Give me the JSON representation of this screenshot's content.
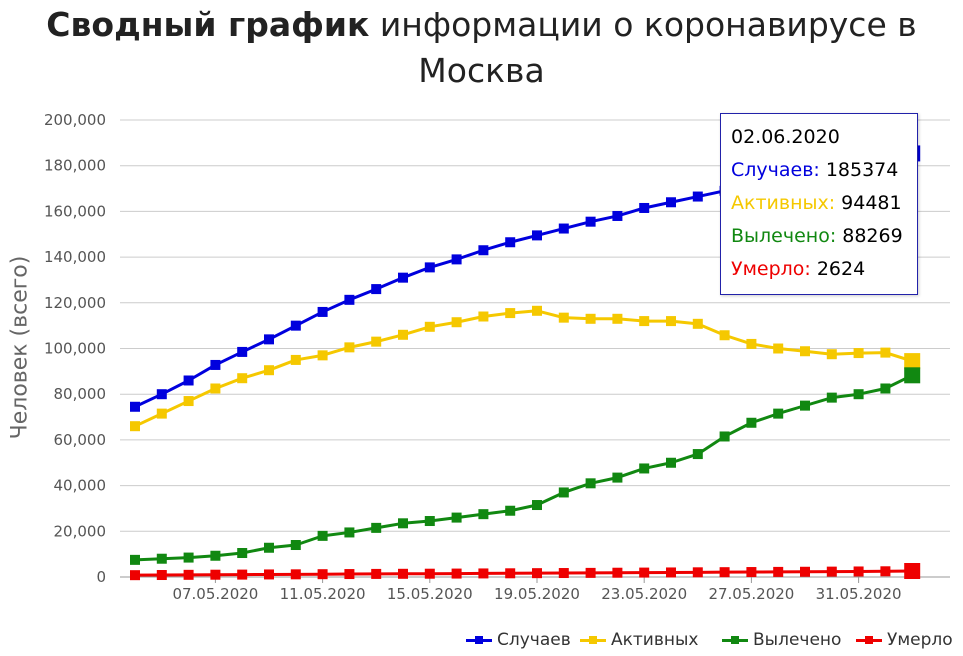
{
  "title": {
    "bold": "Сводный график",
    "rest": " информации о коронавирусе в Москва"
  },
  "chart_data": {
    "type": "line",
    "ylabel": "Человек (всего)",
    "ylim": [
      0,
      200000
    ],
    "yticks": [
      0,
      20000,
      40000,
      60000,
      80000,
      100000,
      120000,
      140000,
      160000,
      180000,
      200000
    ],
    "ytick_labels": [
      "0",
      "20,000",
      "40,000",
      "60,000",
      "80,000",
      "100,000",
      "120,000",
      "140,000",
      "160,000",
      "180,000",
      "200,000"
    ],
    "x": [
      "04.05.2020",
      "05.05.2020",
      "06.05.2020",
      "07.05.2020",
      "08.05.2020",
      "09.05.2020",
      "10.05.2020",
      "11.05.2020",
      "12.05.2020",
      "13.05.2020",
      "14.05.2020",
      "15.05.2020",
      "16.05.2020",
      "17.05.2020",
      "18.05.2020",
      "19.05.2020",
      "20.05.2020",
      "21.05.2020",
      "22.05.2020",
      "23.05.2020",
      "24.05.2020",
      "25.05.2020",
      "26.05.2020",
      "27.05.2020",
      "28.05.2020",
      "29.05.2020",
      "30.05.2020",
      "31.05.2020",
      "01.06.2020",
      "02.06.2020"
    ],
    "xtick_labels": [
      "07.05.2020",
      "11.05.2020",
      "15.05.2020",
      "19.05.2020",
      "23.05.2020",
      "27.05.2020",
      "31.05.2020"
    ],
    "grid": true,
    "legend_position": "bottom-right",
    "series": [
      {
        "name": "Случаев",
        "color": "#0000dd",
        "values": [
          74500,
          80000,
          86000,
          92800,
          98500,
          104000,
          110000,
          116000,
          121300,
          126000,
          131000,
          135500,
          139000,
          143000,
          146500,
          149500,
          152500,
          155500,
          158000,
          161500,
          164000,
          166500,
          169000,
          171500,
          174000,
          176000,
          178500,
          181000,
          183000,
          185374
        ]
      },
      {
        "name": "Активных",
        "color": "#f5c800",
        "values": [
          66000,
          71500,
          77000,
          82500,
          87000,
          90500,
          95000,
          97000,
          100500,
          103000,
          106000,
          109500,
          111500,
          114000,
          115500,
          116500,
          113500,
          113000,
          113000,
          112000,
          112000,
          110800,
          105800,
          102000,
          100000,
          98800,
          97500,
          98000,
          98200,
          94481
        ]
      },
      {
        "name": "Вылечено",
        "color": "#118811",
        "values": [
          7500,
          8000,
          8500,
          9300,
          10500,
          12800,
          14000,
          18000,
          19500,
          21500,
          23500,
          24500,
          26000,
          27500,
          29000,
          31500,
          37000,
          41000,
          43500,
          47500,
          50000,
          53800,
          61500,
          67500,
          71500,
          75000,
          78500,
          80000,
          82500,
          88269
        ]
      },
      {
        "name": "Умерло",
        "color": "#ee0000",
        "values": [
          800,
          870,
          950,
          1000,
          1050,
          1120,
          1170,
          1230,
          1290,
          1350,
          1400,
          1440,
          1500,
          1560,
          1620,
          1680,
          1740,
          1800,
          1870,
          1930,
          1990,
          2050,
          2110,
          2170,
          2230,
          2290,
          2350,
          2420,
          2500,
          2624
        ]
      }
    ]
  },
  "tooltip": {
    "date": "02.06.2020",
    "rows": [
      {
        "label": "Случаев:",
        "value": "185374",
        "color": "#0000dd"
      },
      {
        "label": "Активных:",
        "value": "94481",
        "color": "#f5c800"
      },
      {
        "label": "Вылечено:",
        "value": "88269",
        "color": "#118811"
      },
      {
        "label": "Умерло:",
        "value": "2624",
        "color": "#ee0000"
      }
    ]
  },
  "legend": [
    {
      "label": "Случаев",
      "color": "#0000dd"
    },
    {
      "label": "Активных",
      "color": "#f5c800"
    },
    {
      "label": "Вылечено",
      "color": "#118811"
    },
    {
      "label": "Умерло",
      "color": "#ee0000"
    }
  ]
}
